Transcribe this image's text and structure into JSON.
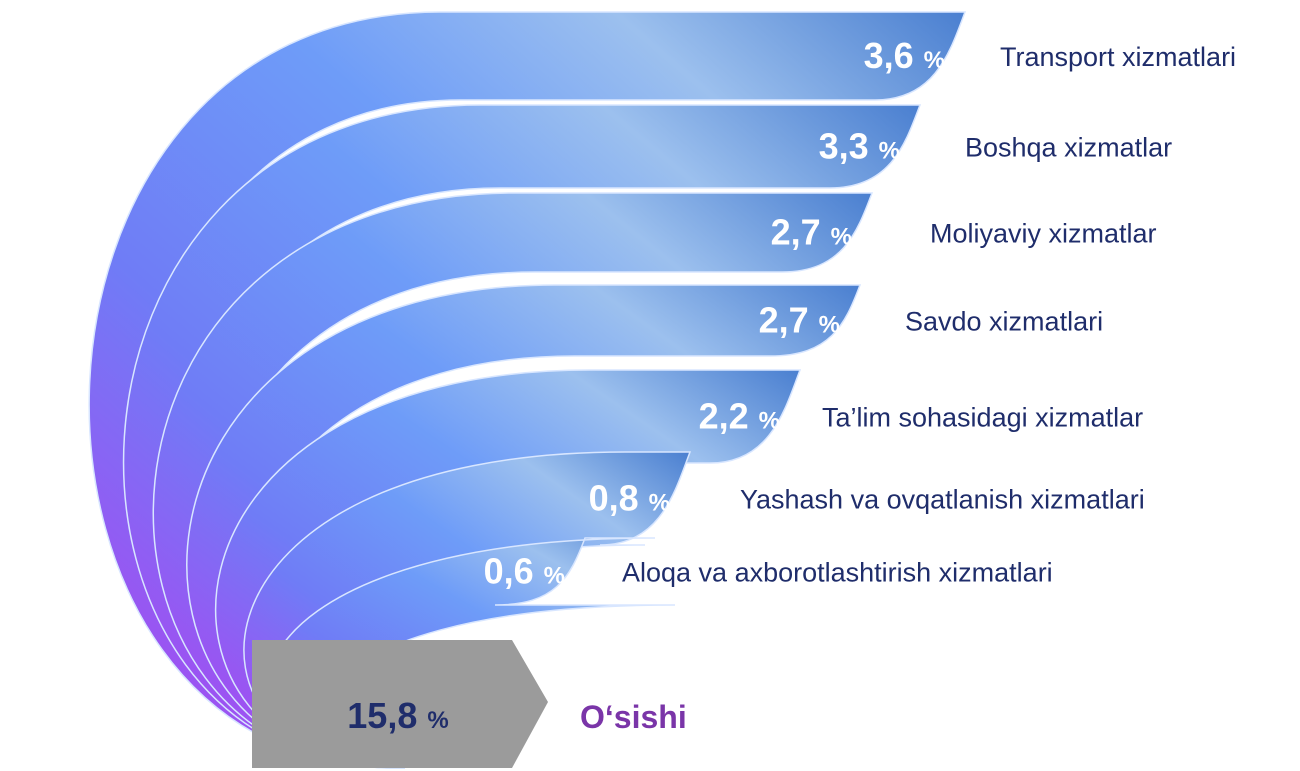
{
  "unit": "%",
  "items": [
    {
      "value": "3,6",
      "label": "Transport xizmatlari"
    },
    {
      "value": "3,3",
      "label": "Boshqa xizmatlar"
    },
    {
      "value": "2,7",
      "label": "Moliyaviy xizmatlar"
    },
    {
      "value": "2,7",
      "label": "Savdo xizmatlari"
    },
    {
      "value": "2,2",
      "label": "Ta’lim sohasidagi xizmatlar"
    },
    {
      "value": "0,8",
      "label": "Yashash va ovqatlanish xizmatlari"
    },
    {
      "value": "0,6",
      "label": "Aloqa va axborotlashtirish xizmatlari"
    }
  ],
  "total": {
    "value": "15,8",
    "label": "O‘sishi"
  }
}
